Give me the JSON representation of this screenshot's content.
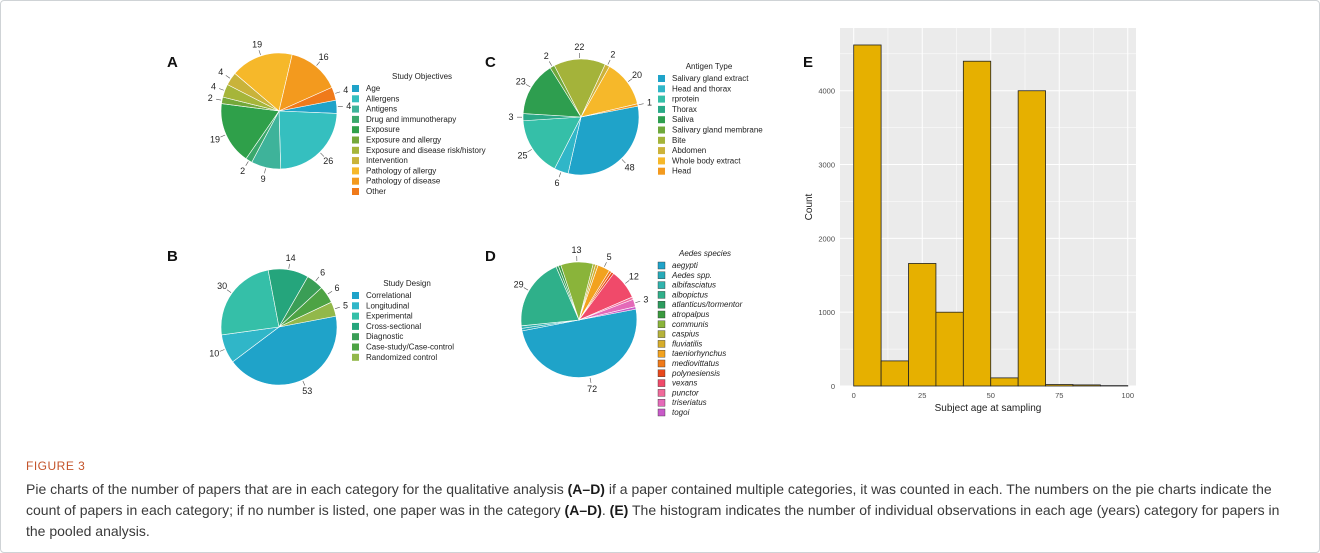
{
  "figure": {
    "label": "FIGURE 3",
    "caption_part1": "Pie charts of the number of papers that are in each category for the qualitative analysis ",
    "caption_ref1": "(A–D)",
    "caption_part2": " if a paper contained multiple categories, it was counted in each. The numbers on the pie charts indicate the count of papers in each category; if no number is listed, one paper was in the category ",
    "caption_ref2": "(A–D)",
    "caption_part3": ". ",
    "caption_ref3": "(E)",
    "caption_part4": " The histogram indicates the number of individual observations in each age (years) category for papers in the pooled analysis."
  },
  "chart_data": [
    {
      "id": "A",
      "type": "pie",
      "panel_label": "A",
      "legend_title": "Study Objectives",
      "slices": [
        {
          "label": "Age",
          "value": 4,
          "color": "#1fa3c9",
          "show": "4"
        },
        {
          "label": "Allergens",
          "value": 26,
          "color": "#35bfbf",
          "show": "26"
        },
        {
          "label": "Antigens",
          "value": 9,
          "color": "#3eb39a",
          "show": "9"
        },
        {
          "label": "Drug and immunotherapy",
          "value": 2,
          "color": "#3aa86b",
          "show": "2"
        },
        {
          "label": "Exposure",
          "value": 19,
          "color": "#2fa04a",
          "show": "19"
        },
        {
          "label": "Exposure and allergy",
          "value": 2,
          "color": "#74a83a",
          "show": "2"
        },
        {
          "label": "Exposure and disease risk/history",
          "value": 4,
          "color": "#a6b53a",
          "show": "4"
        },
        {
          "label": "Intervention",
          "value": 4,
          "color": "#c9b33a",
          "show": "4"
        },
        {
          "label": "Pathology of allergy",
          "value": 19,
          "color": "#f6b82a",
          "show": "19"
        },
        {
          "label": "Pathology of disease",
          "value": 16,
          "color": "#f39a1e",
          "show": "16"
        },
        {
          "label": "Other",
          "value": 4,
          "color": "#f07a1a",
          "show": "4"
        }
      ]
    },
    {
      "id": "B",
      "type": "pie",
      "panel_label": "B",
      "legend_title": "Study Design",
      "slices": [
        {
          "label": "Correlational",
          "value": 53,
          "color": "#1fa3c9",
          "show": "53"
        },
        {
          "label": "Longitudinal",
          "value": 10,
          "color": "#30b6c8",
          "show": "10"
        },
        {
          "label": "Experimental",
          "value": 30,
          "color": "#35bfa8",
          "show": "30"
        },
        {
          "label": "Cross-sectional",
          "value": 14,
          "color": "#25a57c",
          "show": "14"
        },
        {
          "label": "Diagnostic",
          "value": 6,
          "color": "#3a9e56",
          "show": "6"
        },
        {
          "label": "Case-study/Case-control",
          "value": 6,
          "color": "#4da344",
          "show": "6"
        },
        {
          "label": "Randomized control",
          "value": 5,
          "color": "#92b84a",
          "show": "5"
        }
      ]
    },
    {
      "id": "C",
      "type": "pie",
      "panel_label": "C",
      "legend_title": "Antigen Type",
      "slices": [
        {
          "label": "Salivary gland extract",
          "value": 48,
          "color": "#1fa3c9",
          "show": "48"
        },
        {
          "label": "Head and thorax",
          "value": 6,
          "color": "#30b6c8",
          "show": "6"
        },
        {
          "label": "rprotein",
          "value": 25,
          "color": "#35bfa8",
          "show": "25"
        },
        {
          "label": "Thorax",
          "value": 3,
          "color": "#2aa987",
          "show": "3"
        },
        {
          "label": "Saliva",
          "value": 23,
          "color": "#2e9e4f",
          "show": "23"
        },
        {
          "label": "Salivary gland membrane",
          "value": 2,
          "color": "#6fa83c",
          "show": "2"
        },
        {
          "label": "Bite",
          "value": 22,
          "color": "#a4b33a",
          "show": "22"
        },
        {
          "label": "Abdomen",
          "value": 2,
          "color": "#ccb23a",
          "show": "2"
        },
        {
          "label": "Whole body extract",
          "value": 20,
          "color": "#f6b82a",
          "show": "20"
        },
        {
          "label": "Head",
          "value": 1,
          "color": "#f39a1e",
          "show": "1"
        }
      ]
    },
    {
      "id": "D",
      "type": "pie",
      "panel_label": "D",
      "legend_title": "Aedes species",
      "slices": [
        {
          "label": "aegypti",
          "value": 72,
          "color": "#1fa3c9",
          "show": "72"
        },
        {
          "label": "Aedes spp.",
          "value": 1,
          "color": "#27aab8",
          "show": ""
        },
        {
          "label": "albifasciatus",
          "value": 1,
          "color": "#30b3ad",
          "show": ""
        },
        {
          "label": "albopictus",
          "value": 29,
          "color": "#2fb08a",
          "show": "29"
        },
        {
          "label": "atlanticus/tormentor",
          "value": 1,
          "color": "#2c9c5e",
          "show": ""
        },
        {
          "label": "atropalpus",
          "value": 1,
          "color": "#3a9a3e",
          "show": ""
        },
        {
          "label": "communis",
          "value": 13,
          "color": "#8ab43a",
          "show": "13"
        },
        {
          "label": "caspius",
          "value": 1,
          "color": "#b5b23a",
          "show": ""
        },
        {
          "label": "fluviatilis",
          "value": 1,
          "color": "#d6ad2a",
          "show": ""
        },
        {
          "label": "taeniorhynchus",
          "value": 5,
          "color": "#f2a21e",
          "show": "5"
        },
        {
          "label": "mediovittatus",
          "value": 1,
          "color": "#f07a1a",
          "show": ""
        },
        {
          "label": "polynesiensis",
          "value": 1,
          "color": "#e8481c",
          "show": ""
        },
        {
          "label": "vexans",
          "value": 12,
          "color": "#f04a6a",
          "show": "12"
        },
        {
          "label": "punctor",
          "value": 1,
          "color": "#f06a9a",
          "show": ""
        },
        {
          "label": "triseriatus",
          "value": 3,
          "color": "#e46ab8",
          "show": "3"
        },
        {
          "label": "togoi",
          "value": 1,
          "color": "#c85ac8",
          "show": ""
        }
      ]
    },
    {
      "id": "E",
      "type": "bar",
      "panel_label": "E",
      "xlabel": "Subject age at sampling",
      "ylabel": "Count",
      "xlim": [
        -5,
        103
      ],
      "ylim": [
        0,
        4850
      ],
      "xticks": [
        0,
        25,
        50,
        75,
        100
      ],
      "yticks": [
        0,
        1000,
        2000,
        3000,
        4000
      ],
      "bar_color": "#e6b000",
      "bin_width": 10,
      "bins": [
        {
          "x0": 0,
          "x1": 10,
          "count": 4620
        },
        {
          "x0": 10,
          "x1": 20,
          "count": 340
        },
        {
          "x0": 20,
          "x1": 30,
          "count": 1660
        },
        {
          "x0": 30,
          "x1": 40,
          "count": 1000
        },
        {
          "x0": 40,
          "x1": 50,
          "count": 4400
        },
        {
          "x0": 50,
          "x1": 60,
          "count": 110
        },
        {
          "x0": 60,
          "x1": 70,
          "count": 4000
        },
        {
          "x0": 70,
          "x1": 80,
          "count": 20
        },
        {
          "x0": 80,
          "x1": 90,
          "count": 15
        },
        {
          "x0": 90,
          "x1": 100,
          "count": 5
        }
      ],
      "grid": true
    }
  ]
}
